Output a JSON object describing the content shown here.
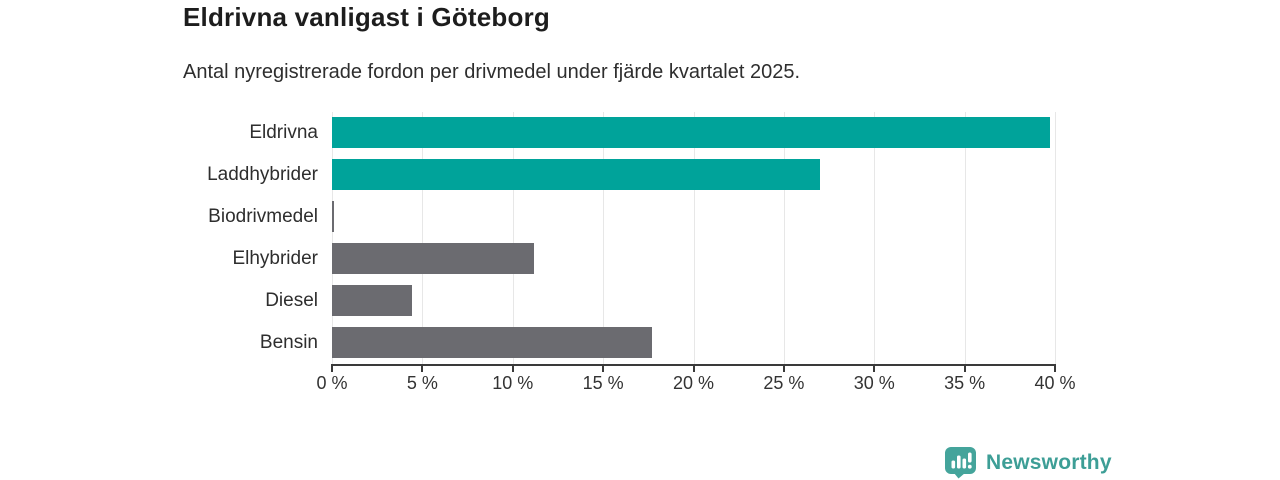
{
  "title": "Eldrivna vanligast i Göteborg",
  "subtitle": "Antal nyregistrerade fordon per drivmedel under fjärde kvartalet 2025.",
  "chart_data": {
    "type": "bar",
    "orientation": "horizontal",
    "title": "Eldrivna vanligast i Göteborg",
    "subtitle": "Antal nyregistrerade fordon per drivmedel under fjärde kvartalet 2025.",
    "categories": [
      "Eldrivna",
      "Laddhybrider",
      "Biodrivmedel",
      "Elhybrider",
      "Diesel",
      "Bensin"
    ],
    "values": [
      39.7,
      27.0,
      0.1,
      11.2,
      4.4,
      17.7
    ],
    "unit": "%",
    "xlim": [
      0,
      40
    ],
    "x_ticks": [
      0,
      5,
      10,
      15,
      20,
      25,
      30,
      35,
      40
    ],
    "x_tick_labels": [
      "0 %",
      "5 %",
      "10 %",
      "15 %",
      "20 %",
      "25 %",
      "30 %",
      "35 %",
      "40 %"
    ],
    "bar_colors": [
      "#00a39a",
      "#00a39a",
      "#6b6b70",
      "#6b6b70",
      "#6b6b70",
      "#6b6b70"
    ],
    "highlight_color": "#00a39a",
    "default_color": "#6b6b70",
    "grid": true,
    "legend": "none"
  },
  "colors": {
    "teal": "#00a39a",
    "gray": "#6b6b70",
    "gridline": "#e7e7e7",
    "axis": "#3a3a3a",
    "brand_teal": "#3d9e96"
  },
  "footer": {
    "brand": "Newsworthy",
    "logo_icon": "bar-chart-speech-bubble"
  }
}
